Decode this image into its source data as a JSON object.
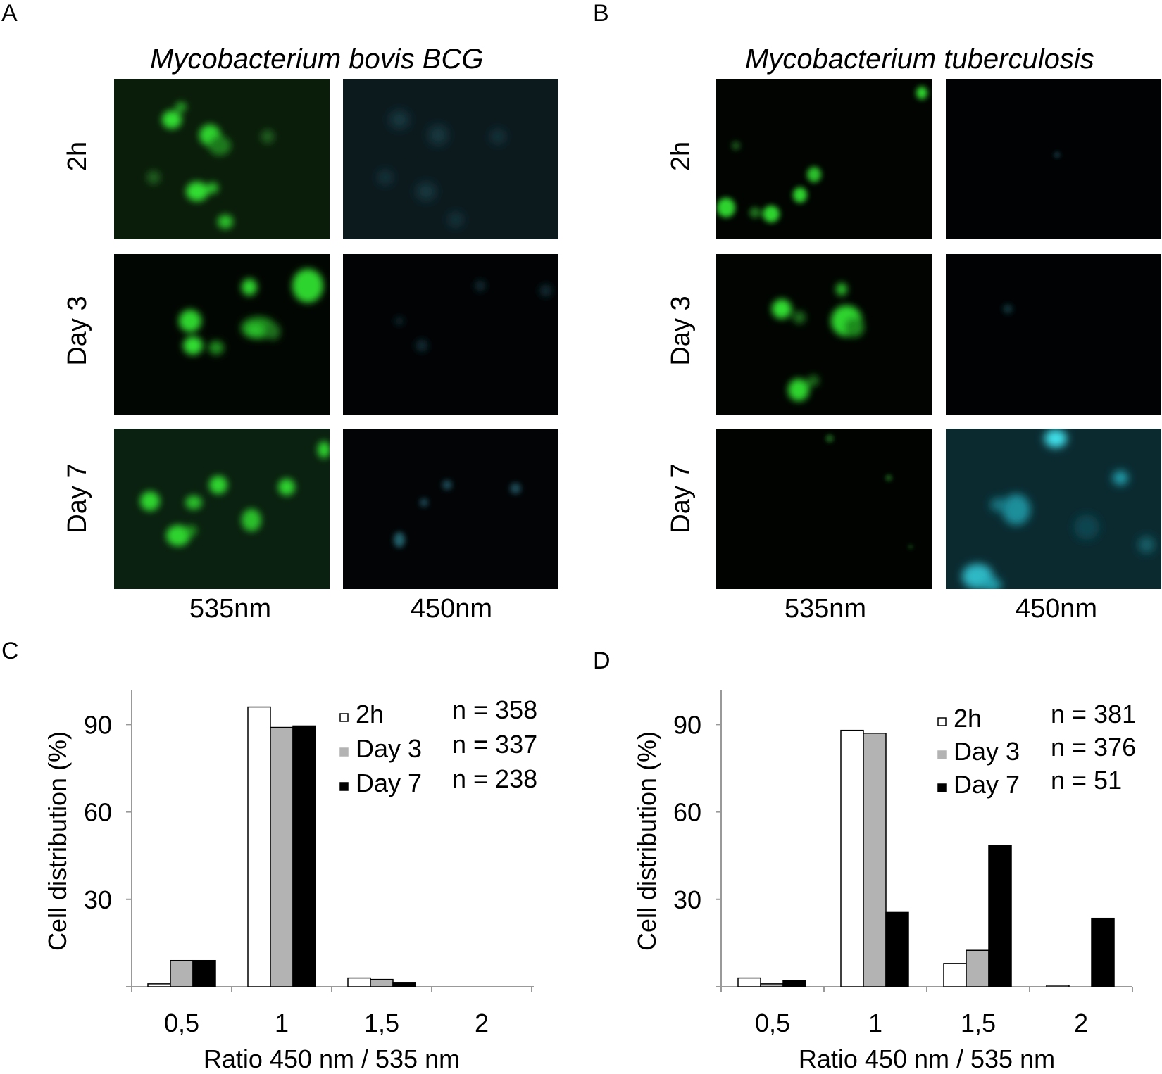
{
  "panels": {
    "A": {
      "letter": "A",
      "species": "Mycobacterium bovis BCG",
      "rows": [
        "2h",
        "Day 3",
        "Day 7"
      ],
      "wavelengths": [
        "535nm",
        "450nm"
      ]
    },
    "B": {
      "letter": "B",
      "species": "Mycobacterium tuberculosis",
      "rows": [
        "2h",
        "Day 3",
        "Day 7"
      ],
      "wavelengths": [
        "535nm",
        "450nm"
      ]
    },
    "C": {
      "letter": "C"
    },
    "D": {
      "letter": "D"
    }
  },
  "colors": {
    "green_channel": "#22d022",
    "cyan_channel": "#25c8d0",
    "series_2h": "#ffffff",
    "series_day3": "#b3b3b3",
    "series_day7": "#000000",
    "axis": "#999999"
  },
  "chart_data": [
    {
      "type": "bar",
      "panel": "C",
      "categories": [
        "0,5",
        "1",
        "1,5",
        "2"
      ],
      "xlabel": "Ratio 450 nm / 535 nm",
      "ylabel": "Cell distribution (%)",
      "ylim": [
        0,
        100
      ],
      "yticks": [
        30,
        60,
        90
      ],
      "legend_position": "top-right",
      "series": [
        {
          "name": "2h",
          "n": "n = 358",
          "values": [
            1,
            96,
            3,
            0
          ]
        },
        {
          "name": "Day 3",
          "n": "n = 337",
          "values": [
            9,
            89,
            2.5,
            0
          ]
        },
        {
          "name": "Day 7",
          "n": "n = 238",
          "values": [
            9,
            89.5,
            1.5,
            0
          ]
        }
      ]
    },
    {
      "type": "bar",
      "panel": "D",
      "categories": [
        "0,5",
        "1",
        "1,5",
        "2"
      ],
      "xlabel": "Ratio 450 nm / 535 nm",
      "ylabel": "Cell distribution (%)",
      "ylim": [
        0,
        100
      ],
      "yticks": [
        30,
        60,
        90
      ],
      "legend_position": "top-right",
      "series": [
        {
          "name": "2h",
          "n": "n = 381",
          "values": [
            3,
            88,
            8,
            0.5
          ]
        },
        {
          "name": "Day 3",
          "n": "n = 376",
          "values": [
            1,
            87,
            12.5,
            0
          ]
        },
        {
          "name": "Day 7",
          "n": "n = 51",
          "values": [
            2,
            25.5,
            48.5,
            23.5
          ]
        }
      ]
    }
  ]
}
